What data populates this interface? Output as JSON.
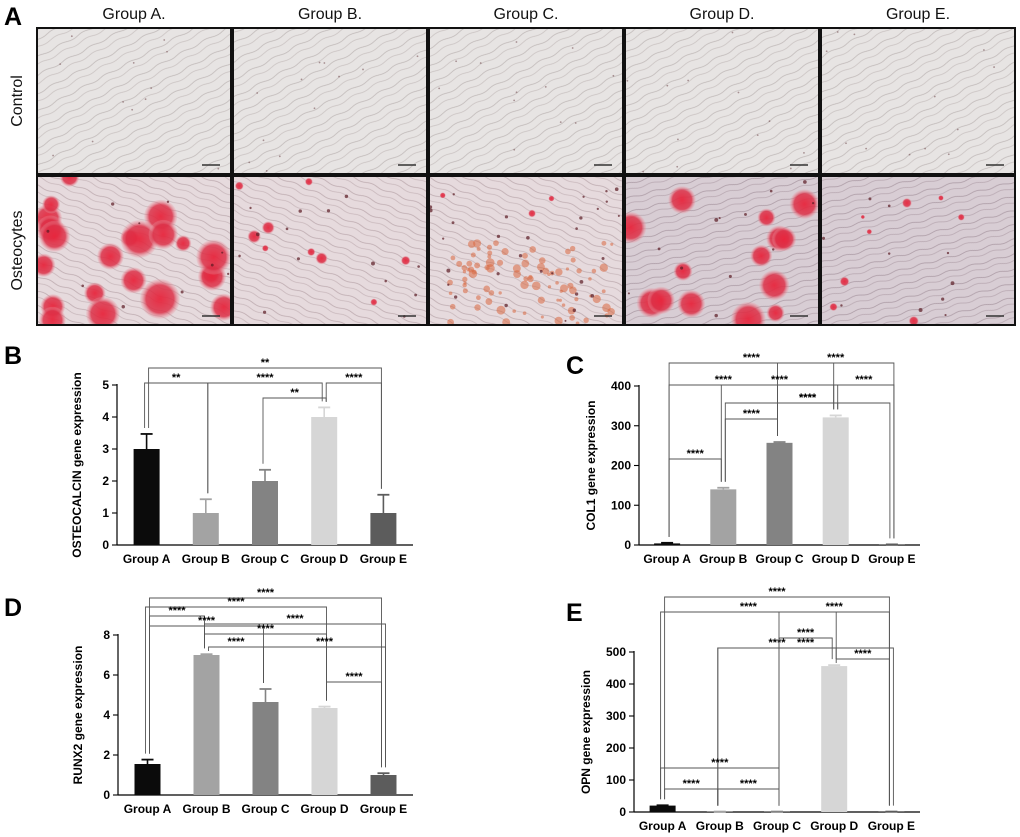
{
  "panel_letters": {
    "a": "A",
    "b": "B",
    "c": "C",
    "d": "D",
    "e": "E"
  },
  "micrographs": {
    "columns": [
      "Group A.",
      "Group B.",
      "Group C.",
      "Group D.",
      "Group E."
    ],
    "rows": [
      "Control",
      "Osteocytes"
    ]
  },
  "chart_data": [
    {
      "panel": "B",
      "type": "bar",
      "categories": [
        "Group A",
        "Group B",
        "Group C",
        "Group D",
        "Group E"
      ],
      "values": [
        3,
        1,
        2,
        4,
        1
      ],
      "errors": [
        0.47,
        0.43,
        0.35,
        0.3,
        0.57
      ],
      "colors": [
        "#0b0b0b",
        "#a3a3a3",
        "#838383",
        "#d6d6d6",
        "#5c5c5c"
      ],
      "ylabel": "OSTEOCALCIN  gene expression",
      "ylim": [
        0,
        5
      ],
      "yticks": [
        0,
        1,
        2,
        3,
        4,
        5
      ],
      "comparisons": [
        {
          "from": "Group A",
          "to": "Group E",
          "label": "**"
        },
        {
          "from": "Group A",
          "to": "Group B",
          "label": "**"
        },
        {
          "from": "Group B",
          "to": "Group D",
          "label": "****"
        },
        {
          "from": "Group C",
          "to": "Group D",
          "label": "**"
        },
        {
          "from": "Group D",
          "to": "Group E",
          "label": "****"
        }
      ]
    },
    {
      "panel": "C",
      "type": "bar",
      "categories": [
        "Group A",
        "Group B",
        "Group C",
        "Group D",
        "Group E"
      ],
      "values": [
        4,
        140,
        257,
        321,
        1
      ],
      "errors": [
        1.5,
        4,
        2,
        5,
        0.5
      ],
      "colors": [
        "#0b0b0b",
        "#a3a3a3",
        "#838383",
        "#d6d6d6",
        "#5c5c5c"
      ],
      "ylabel": "COL1 gene expression",
      "ylim": [
        0,
        400
      ],
      "yticks": [
        0,
        100,
        200,
        300,
        400
      ],
      "comparisons": [
        {
          "from": "Group A",
          "to": "Group D",
          "label": "****"
        },
        {
          "from": "Group C",
          "to": "Group E",
          "label": "****"
        },
        {
          "from": "Group A",
          "to": "Group C",
          "label": "****"
        },
        {
          "from": "Group B",
          "to": "Group D",
          "label": "****"
        },
        {
          "from": "Group B",
          "to": "Group C",
          "label": "****"
        },
        {
          "from": "Group C",
          "to": "Group D",
          "label": "****"
        },
        {
          "from": "Group A",
          "to": "Group B",
          "label": "****"
        },
        {
          "from": "Group D",
          "to": "Group E",
          "label": "****"
        },
        {
          "from": "Group B",
          "to": "Group E",
          "label": "****"
        }
      ]
    },
    {
      "panel": "D",
      "type": "bar",
      "categories": [
        "Group A",
        "Group B",
        "Group C",
        "Group D",
        "Group E"
      ],
      "values": [
        1.55,
        7.0,
        4.65,
        4.35,
        1.0
      ],
      "errors": [
        0.22,
        0.04,
        0.65,
        0.07,
        0.09
      ],
      "colors": [
        "#0b0b0b",
        "#a3a3a3",
        "#838383",
        "#d6d6d6",
        "#5c5c5c"
      ],
      "ylabel": "RUNX2 gene expression",
      "ylim": [
        0,
        8
      ],
      "yticks": [
        0,
        2,
        4,
        6,
        8
      ],
      "comparisons": [
        {
          "from": "Group A",
          "to": "Group E",
          "label": "****"
        },
        {
          "from": "Group A",
          "to": "Group D",
          "label": "****"
        },
        {
          "from": "Group A",
          "to": "Group B",
          "label": "****"
        },
        {
          "from": "Group B",
          "to": "Group E",
          "label": "****"
        },
        {
          "from": "Group A",
          "to": "Group C",
          "label": "****"
        },
        {
          "from": "Group B",
          "to": "Group D",
          "label": "****"
        },
        {
          "from": "Group B",
          "to": "Group C",
          "label": "****"
        },
        {
          "from": "Group C",
          "to": "Group E",
          "label": "****"
        },
        {
          "from": "Group D",
          "to": "Group E",
          "label": "****"
        }
      ]
    },
    {
      "panel": "E",
      "type": "bar",
      "categories": [
        "Group A",
        "Group B",
        "Group C",
        "Group D",
        "Group E"
      ],
      "values": [
        20,
        1,
        1,
        456,
        1
      ],
      "errors": [
        1,
        0.3,
        0.3,
        3,
        0.3
      ],
      "colors": [
        "#0b0b0b",
        "#a3a3a3",
        "#838383",
        "#d6d6d6",
        "#5c5c5c"
      ],
      "ylabel": "OPN gene expression",
      "ylim": [
        0,
        500
      ],
      "yticks": [
        0,
        100,
        200,
        300,
        400,
        500
      ],
      "comparisons": [
        {
          "from": "Group A",
          "to": "Group E",
          "label": "****"
        },
        {
          "from": "Group A",
          "to": "Group D",
          "label": "****"
        },
        {
          "from": "Group C",
          "to": "Group E",
          "label": "****"
        },
        {
          "from": "Group B",
          "to": "Group D",
          "label": "****"
        },
        {
          "from": "Group C",
          "to": "Group D",
          "label": "****"
        },
        {
          "from": "Group B",
          "to": "Group E",
          "label": "****"
        },
        {
          "from": "Group D",
          "to": "Group E",
          "label": "****"
        },
        {
          "from": "Group A",
          "to": "Group C",
          "label": "****"
        },
        {
          "from": "Group A",
          "to": "Group B",
          "label": "****"
        },
        {
          "from": "Group B",
          "to": "Group C",
          "label": "****"
        }
      ]
    }
  ]
}
